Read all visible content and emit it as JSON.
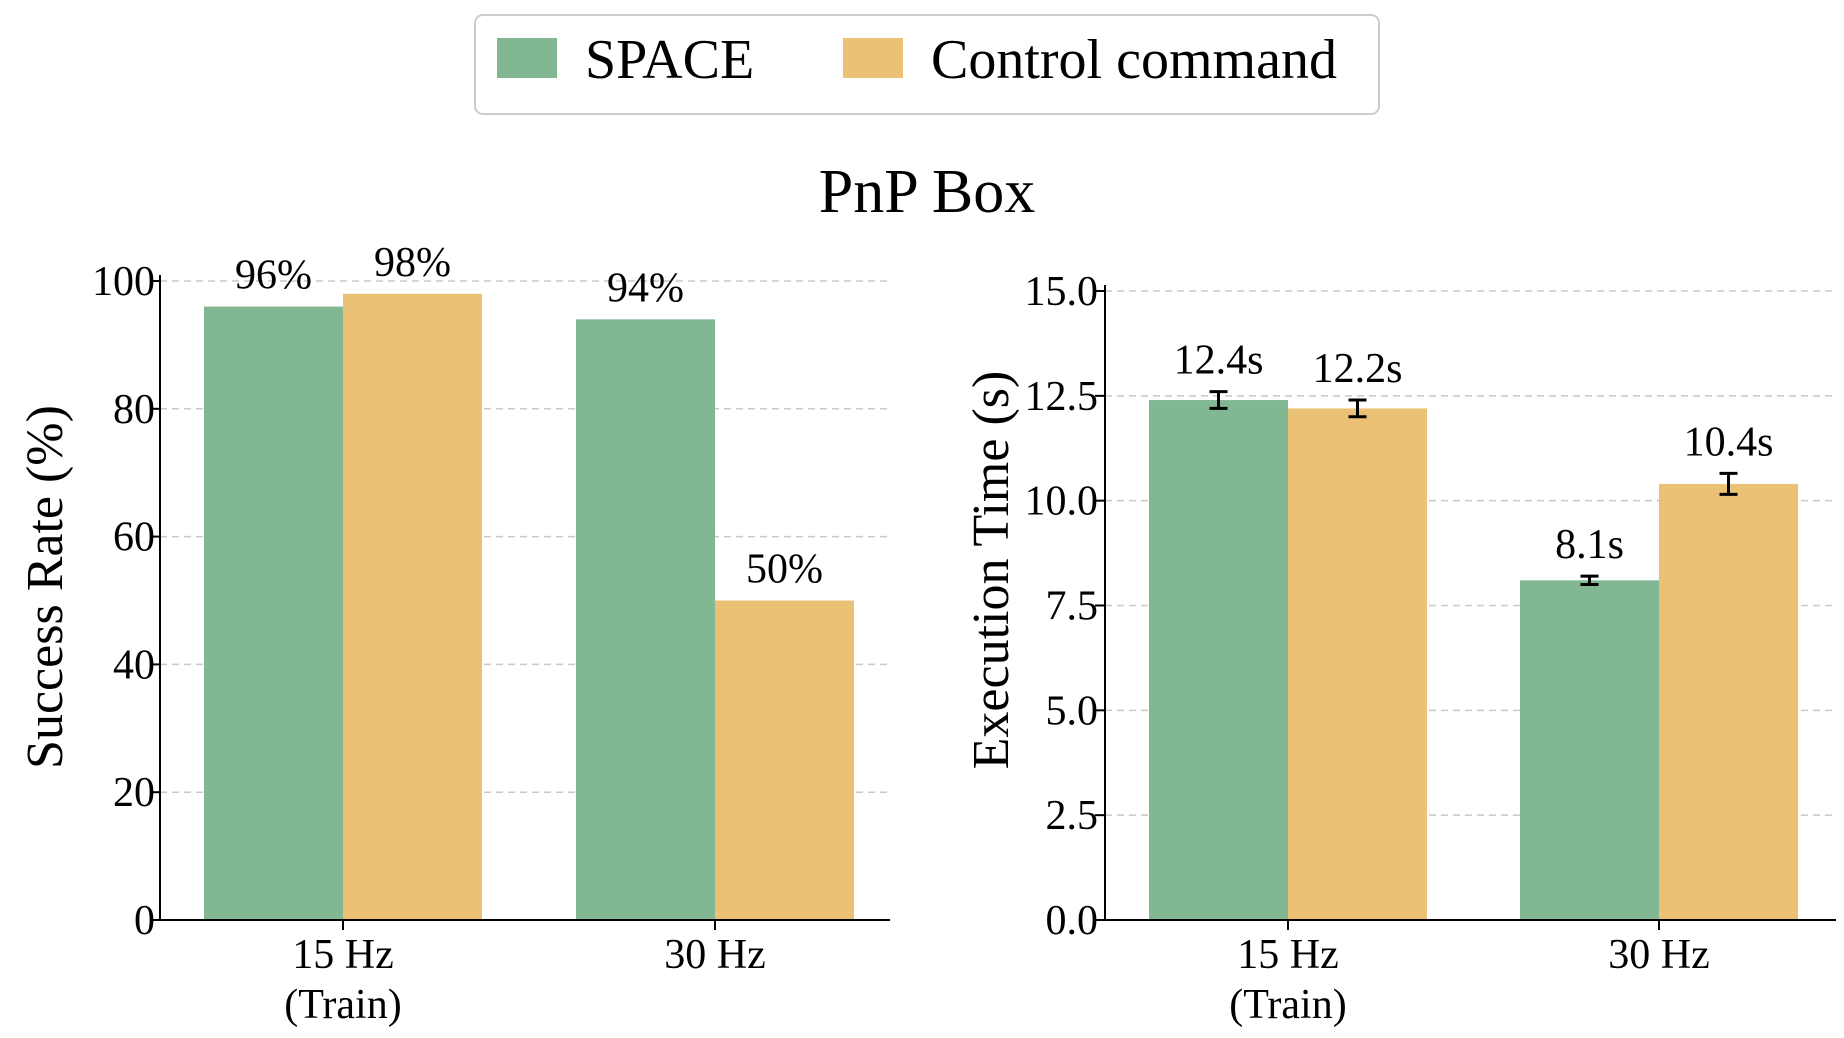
{
  "figure_title": "PnP Box",
  "legend": [
    {
      "label": "SPACE",
      "color": "#82b794"
    },
    {
      "label": "Control command",
      "color": "#ebc275"
    }
  ],
  "chart_data": [
    {
      "type": "bar",
      "title": "",
      "xlabel": "",
      "ylabel": "Success Rate (%)",
      "categories": [
        "15 Hz\n(Train)",
        "30 Hz"
      ],
      "category_lines": [
        [
          "15 Hz",
          "(Train)"
        ],
        [
          "30 Hz"
        ]
      ],
      "series": [
        {
          "name": "SPACE",
          "values": [
            96,
            94
          ],
          "color": "#82b794"
        },
        {
          "name": "Control command",
          "values": [
            98,
            50
          ],
          "color": "#ebc275"
        }
      ],
      "data_labels": [
        [
          "96%",
          "94%"
        ],
        [
          "98%",
          "50%"
        ]
      ],
      "ylim": [
        0,
        100
      ],
      "yticks": [
        0,
        20,
        40,
        60,
        80,
        100
      ],
      "ytick_labels": [
        "0",
        "20",
        "40",
        "60",
        "80",
        "100"
      ],
      "grid": "y, dashed",
      "error_bars": false
    },
    {
      "type": "bar",
      "title": "",
      "xlabel": "",
      "ylabel": "Execution Time (s)",
      "categories": [
        "15 Hz\n(Train)",
        "30 Hz"
      ],
      "category_lines": [
        [
          "15 Hz",
          "(Train)"
        ],
        [
          "30 Hz"
        ]
      ],
      "series": [
        {
          "name": "SPACE",
          "values": [
            12.4,
            8.1
          ],
          "errors": [
            0.2,
            0.1
          ],
          "color": "#82b794"
        },
        {
          "name": "Control command",
          "values": [
            12.2,
            10.4
          ],
          "errors": [
            0.2,
            0.25
          ],
          "color": "#ebc275"
        }
      ],
      "data_labels": [
        [
          "12.4s",
          "8.1s"
        ],
        [
          "12.2s",
          "10.4s"
        ]
      ],
      "ylim": [
        0,
        15
      ],
      "yticks": [
        0,
        2.5,
        5,
        7.5,
        10,
        12.5,
        15
      ],
      "ytick_labels": [
        "0.0",
        "2.5",
        "5.0",
        "7.5",
        "10.0",
        "12.5",
        "15.0"
      ],
      "grid": "y, dashed",
      "error_bars": true
    }
  ]
}
